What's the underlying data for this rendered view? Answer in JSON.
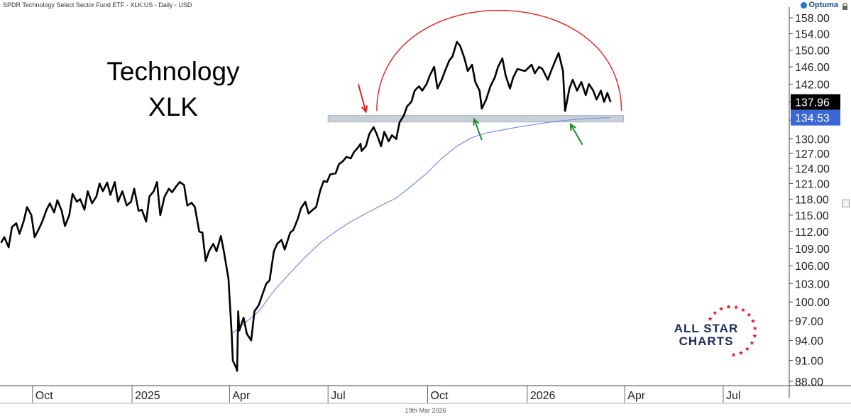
{
  "header": {
    "title": "SPDR Technology Select Sector Fund ETF - XLK:US - Daily - USD",
    "logo_text": "Optuma"
  },
  "footer": {
    "date": "19th Mar 2026"
  },
  "annotations": {
    "headline_line1": "Technology",
    "headline_line2": "XLK"
  },
  "branding": {
    "line1": "ALL STAR",
    "line2": "CHARTS"
  },
  "colors": {
    "price_line": "#000000",
    "ma_line": "#7b8fe0",
    "arc": "#e02020",
    "support_band": "#c9d1d8",
    "red_arrow": "#e02020",
    "green_arrow": "#1f8a2a",
    "last_price_badge": "#000000",
    "ma_badge": "#3a66d6",
    "brand_navy": "#1c2b5a",
    "brand_red": "#d6202b"
  },
  "chart_data": {
    "type": "line",
    "title": "SPDR Technology Select Sector Fund ETF - XLK:US - Daily - USD",
    "xlabel": "",
    "ylabel": "",
    "y_scale": "log",
    "ylim": [
      87.5,
      160
    ],
    "y_ticks": [
      88.0,
      91.0,
      94.0,
      97.0,
      100.0,
      103.0,
      106.0,
      109.0,
      112.0,
      115.0,
      118.0,
      121.0,
      124.0,
      127.0,
      130.0,
      134.0,
      138.0,
      142.0,
      146.0,
      150.0,
      154.0,
      158.0
    ],
    "y_tick_labels": [
      "88.00",
      "91.00",
      "94.00",
      "97.00",
      "100.00",
      "103.00",
      "106.00",
      "109.00",
      "112.00",
      "115.00",
      "118.00",
      "121.00",
      "124.00",
      "127.00",
      "130.00",
      "134.00",
      "138.00",
      "142.00",
      "146.00",
      "150.00",
      "154.00",
      "158.00"
    ],
    "x_range": [
      "2024-09-01",
      "2026-08-31"
    ],
    "x_ticks": [
      {
        "date": "2024-10-01",
        "label": "Oct"
      },
      {
        "date": "2025-01-01",
        "label": "2025"
      },
      {
        "date": "2025-04-01",
        "label": "Apr"
      },
      {
        "date": "2025-07-01",
        "label": "Jul"
      },
      {
        "date": "2025-10-01",
        "label": "Oct"
      },
      {
        "date": "2026-01-01",
        "label": "2026"
      },
      {
        "date": "2026-04-01",
        "label": "Apr"
      },
      {
        "date": "2026-07-01",
        "label": "Jul"
      }
    ],
    "series": [
      {
        "name": "Price",
        "points": [
          [
            "2024-09-02",
            110.0
          ],
          [
            "2024-09-05",
            111.0
          ],
          [
            "2024-09-09",
            109.2
          ],
          [
            "2024-09-12",
            112.8
          ],
          [
            "2024-09-16",
            113.5
          ],
          [
            "2024-09-19",
            111.6
          ],
          [
            "2024-09-23",
            114.0
          ],
          [
            "2024-09-26",
            116.5
          ],
          [
            "2024-09-30",
            115.0
          ],
          [
            "2024-10-03",
            111.0
          ],
          [
            "2024-10-07",
            112.5
          ],
          [
            "2024-10-10",
            113.8
          ],
          [
            "2024-10-14",
            116.0
          ],
          [
            "2024-10-17",
            117.2
          ],
          [
            "2024-10-21",
            115.5
          ],
          [
            "2024-10-24",
            117.8
          ],
          [
            "2024-10-28",
            115.8
          ],
          [
            "2024-10-31",
            113.0
          ],
          [
            "2024-11-04",
            115.0
          ],
          [
            "2024-11-07",
            119.0
          ],
          [
            "2024-11-11",
            117.5
          ],
          [
            "2024-11-14",
            118.0
          ],
          [
            "2024-11-18",
            116.0
          ],
          [
            "2024-11-21",
            119.5
          ],
          [
            "2024-11-25",
            117.2
          ],
          [
            "2024-11-29",
            118.5
          ],
          [
            "2024-12-02",
            121.0
          ],
          [
            "2024-12-05",
            119.5
          ],
          [
            "2024-12-09",
            121.2
          ],
          [
            "2024-12-12",
            118.8
          ],
          [
            "2024-12-16",
            121.3
          ],
          [
            "2024-12-19",
            117.5
          ],
          [
            "2024-12-23",
            119.5
          ],
          [
            "2024-12-27",
            116.8
          ],
          [
            "2024-12-31",
            117.5
          ],
          [
            "2025-01-03",
            120.0
          ],
          [
            "2025-01-07",
            115.8
          ],
          [
            "2025-01-10",
            116.0
          ],
          [
            "2025-01-14",
            113.8
          ],
          [
            "2025-01-17",
            118.5
          ],
          [
            "2025-01-21",
            119.5
          ],
          [
            "2025-01-24",
            121.3
          ],
          [
            "2025-01-27",
            115.0
          ],
          [
            "2025-01-31",
            118.5
          ],
          [
            "2025-02-04",
            120.0
          ],
          [
            "2025-02-07",
            119.3
          ],
          [
            "2025-02-11",
            120.5
          ],
          [
            "2025-02-14",
            121.3
          ],
          [
            "2025-02-18",
            120.7
          ],
          [
            "2025-02-21",
            116.8
          ],
          [
            "2025-02-25",
            117.3
          ],
          [
            "2025-02-28",
            116.5
          ],
          [
            "2025-03-04",
            112.0
          ],
          [
            "2025-03-07",
            111.8
          ],
          [
            "2025-03-10",
            106.8
          ],
          [
            "2025-03-13",
            108.5
          ],
          [
            "2025-03-17",
            109.8
          ],
          [
            "2025-03-20",
            108.5
          ],
          [
            "2025-03-24",
            111.2
          ],
          [
            "2025-03-27",
            108.2
          ],
          [
            "2025-03-31",
            103.8
          ],
          [
            "2025-04-03",
            95.0
          ],
          [
            "2025-04-04",
            91.0
          ],
          [
            "2025-04-07",
            90.0
          ],
          [
            "2025-04-08",
            89.5
          ],
          [
            "2025-04-09",
            98.5
          ],
          [
            "2025-04-10",
            95.5
          ],
          [
            "2025-04-14",
            97.5
          ],
          [
            "2025-04-17",
            95.0
          ],
          [
            "2025-04-21",
            94.0
          ],
          [
            "2025-04-24",
            98.5
          ],
          [
            "2025-04-28",
            99.5
          ],
          [
            "2025-05-01",
            101.0
          ],
          [
            "2025-05-05",
            103.0
          ],
          [
            "2025-05-08",
            103.5
          ],
          [
            "2025-05-12",
            108.5
          ],
          [
            "2025-05-15",
            109.8
          ],
          [
            "2025-05-19",
            110.5
          ],
          [
            "2025-05-22",
            108.8
          ],
          [
            "2025-05-27",
            111.8
          ],
          [
            "2025-05-30",
            112.3
          ],
          [
            "2025-06-03",
            114.3
          ],
          [
            "2025-06-06",
            116.3
          ],
          [
            "2025-06-10",
            117.5
          ],
          [
            "2025-06-13",
            115.3
          ],
          [
            "2025-06-17",
            116.0
          ],
          [
            "2025-06-20",
            116.5
          ],
          [
            "2025-06-24",
            119.8
          ],
          [
            "2025-06-27",
            121.5
          ],
          [
            "2025-06-30",
            121.3
          ],
          [
            "2025-07-03",
            122.8
          ],
          [
            "2025-07-08",
            123.0
          ],
          [
            "2025-07-11",
            124.8
          ],
          [
            "2025-07-15",
            125.5
          ],
          [
            "2025-07-18",
            126.3
          ],
          [
            "2025-07-22",
            126.0
          ],
          [
            "2025-07-25",
            127.3
          ],
          [
            "2025-07-29",
            128.3
          ],
          [
            "2025-07-31",
            129.0
          ],
          [
            "2025-08-01",
            127.5
          ],
          [
            "2025-08-05",
            128.5
          ],
          [
            "2025-08-08",
            131.0
          ],
          [
            "2025-08-12",
            132.5
          ],
          [
            "2025-08-15",
            131.0
          ],
          [
            "2025-08-19",
            128.5
          ],
          [
            "2025-08-22",
            131.5
          ],
          [
            "2025-08-26",
            129.5
          ],
          [
            "2025-08-29",
            130.8
          ],
          [
            "2025-09-02",
            130.0
          ],
          [
            "2025-09-05",
            133.5
          ],
          [
            "2025-09-09",
            135.0
          ],
          [
            "2025-09-12",
            137.0
          ],
          [
            "2025-09-16",
            138.0
          ],
          [
            "2025-09-19",
            140.5
          ],
          [
            "2025-09-23",
            141.5
          ],
          [
            "2025-09-26",
            140.5
          ],
          [
            "2025-09-30",
            142.0
          ],
          [
            "2025-10-03",
            144.0
          ],
          [
            "2025-10-07",
            146.0
          ],
          [
            "2025-10-10",
            141.0
          ],
          [
            "2025-10-14",
            143.0
          ],
          [
            "2025-10-17",
            145.0
          ],
          [
            "2025-10-21",
            147.5
          ],
          [
            "2025-10-24",
            148.5
          ],
          [
            "2025-10-28",
            152.0
          ],
          [
            "2025-10-31",
            151.0
          ],
          [
            "2025-11-04",
            148.0
          ],
          [
            "2025-11-07",
            145.0
          ],
          [
            "2025-11-11",
            146.5
          ],
          [
            "2025-11-14",
            142.5
          ],
          [
            "2025-11-18",
            140.5
          ],
          [
            "2025-11-20",
            136.5
          ],
          [
            "2025-11-24",
            138.5
          ],
          [
            "2025-11-28",
            141.5
          ],
          [
            "2025-12-02",
            143.5
          ],
          [
            "2025-12-05",
            146.0
          ],
          [
            "2025-12-09",
            148.0
          ],
          [
            "2025-12-12",
            144.0
          ],
          [
            "2025-12-16",
            141.0
          ],
          [
            "2025-12-19",
            143.5
          ],
          [
            "2025-12-23",
            145.5
          ],
          [
            "2025-12-30",
            145.0
          ],
          [
            "2026-01-05",
            146.5
          ],
          [
            "2026-01-08",
            144.5
          ],
          [
            "2026-01-12",
            146.0
          ],
          [
            "2026-01-15",
            145.5
          ],
          [
            "2026-01-20",
            143.0
          ],
          [
            "2026-01-23",
            145.0
          ],
          [
            "2026-01-27",
            147.5
          ],
          [
            "2026-01-30",
            149.3
          ],
          [
            "2026-02-03",
            145.0
          ],
          [
            "2026-02-05",
            136.0
          ],
          [
            "2026-02-09",
            141.0
          ],
          [
            "2026-02-12",
            143.0
          ],
          [
            "2026-02-16",
            140.5
          ],
          [
            "2026-02-20",
            142.5
          ],
          [
            "2026-02-24",
            139.5
          ],
          [
            "2026-02-27",
            142.0
          ],
          [
            "2026-03-03",
            140.5
          ],
          [
            "2026-03-06",
            138.5
          ],
          [
            "2026-03-10",
            140.5
          ],
          [
            "2026-03-13",
            138.0
          ],
          [
            "2026-03-16",
            140.0
          ],
          [
            "2026-03-19",
            137.96
          ]
        ]
      },
      {
        "name": "Moving Average",
        "points": [
          [
            "2025-04-03",
            95.0
          ],
          [
            "2025-04-14",
            96.5
          ],
          [
            "2025-04-28",
            98.5
          ],
          [
            "2025-05-12",
            101.8
          ],
          [
            "2025-05-27",
            104.8
          ],
          [
            "2025-06-10",
            107.5
          ],
          [
            "2025-06-24",
            110.0
          ],
          [
            "2025-07-08",
            112.0
          ],
          [
            "2025-07-22",
            113.8
          ],
          [
            "2025-08-05",
            115.3
          ],
          [
            "2025-08-19",
            116.8
          ],
          [
            "2025-09-02",
            118.2
          ],
          [
            "2025-09-16",
            120.5
          ],
          [
            "2025-09-30",
            123.0
          ],
          [
            "2025-10-14",
            126.0
          ],
          [
            "2025-10-28",
            128.5
          ],
          [
            "2025-11-11",
            130.3
          ],
          [
            "2025-11-25",
            131.3
          ],
          [
            "2025-12-09",
            131.9
          ],
          [
            "2025-12-23",
            132.5
          ],
          [
            "2026-01-06",
            133.0
          ],
          [
            "2026-01-20",
            133.5
          ],
          [
            "2026-02-03",
            133.9
          ],
          [
            "2026-02-17",
            134.2
          ],
          [
            "2026-03-03",
            134.4
          ],
          [
            "2026-03-19",
            134.53
          ]
        ]
      }
    ],
    "last_value": {
      "value": 137.96,
      "label": "137.96"
    },
    "ma_last_value": {
      "value": 134.53,
      "label": "134.53"
    },
    "support_zone": {
      "low": 133.6,
      "high": 135.0,
      "from": "2025-07-01",
      "to": "2026-03-31"
    },
    "rounded_top_arc": {
      "from": "2025-08-15",
      "to": "2026-03-29",
      "base": 136.0,
      "peak": 155.0
    },
    "arrows": [
      {
        "color": "red",
        "tail": [
          "2025-07-29",
          142.0
        ],
        "head": [
          "2025-08-05",
          135.8
        ]
      },
      {
        "color": "green",
        "tail": [
          "2025-11-20",
          129.8
        ],
        "head": [
          "2025-11-13",
          134.2
        ]
      },
      {
        "color": "green",
        "tail": [
          "2026-02-21",
          128.8
        ],
        "head": [
          "2026-02-10",
          133.1
        ]
      }
    ],
    "grid": false,
    "legend": "none"
  }
}
